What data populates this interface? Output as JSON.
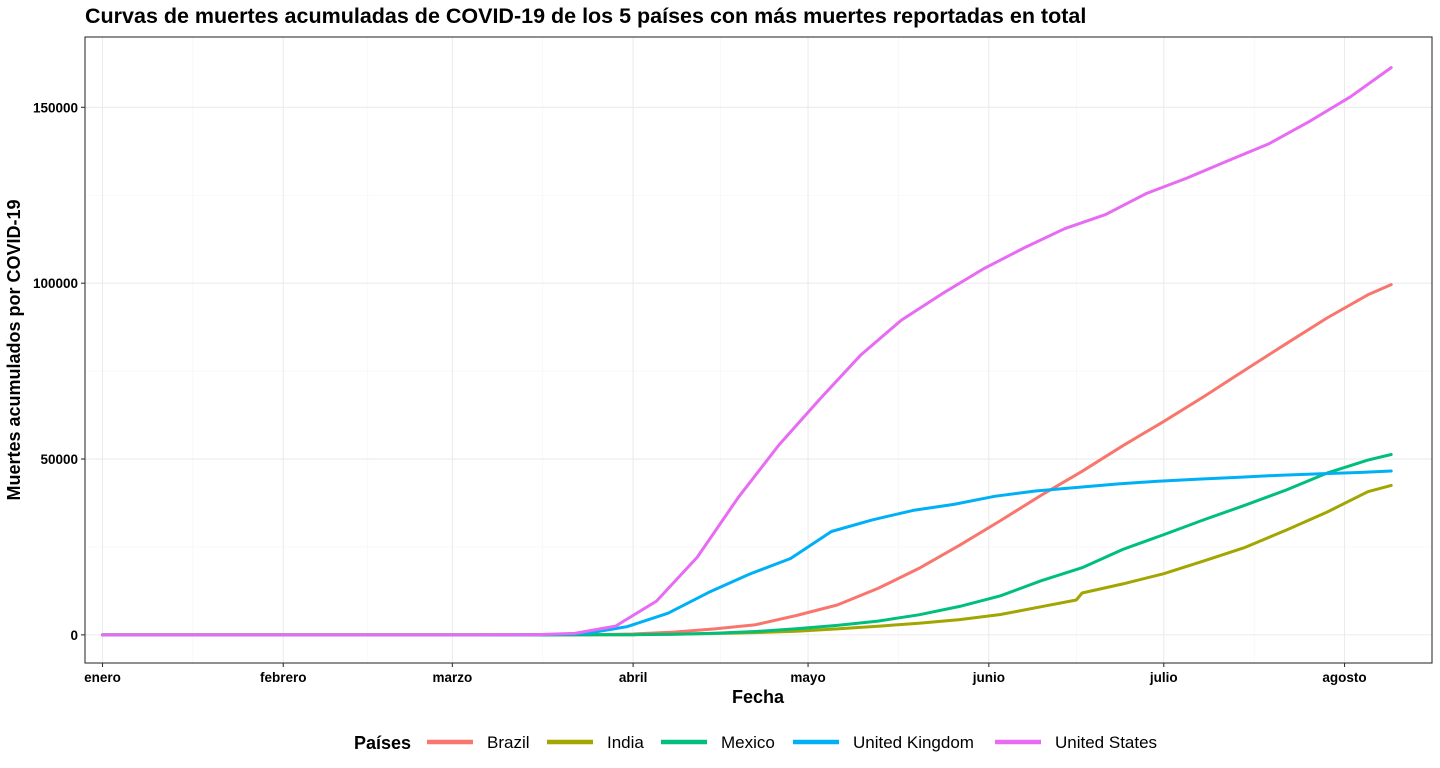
{
  "chart_data": {
    "type": "line",
    "title": "Curvas de muertes acumuladas de COVID-19 de los 5 países con más muertes reportadas en total",
    "xlabel": "Fecha",
    "ylabel": "Muertes acumulados por COVID-19",
    "x_ticks": [
      {
        "label": "enero",
        "date": "2020-01-01"
      },
      {
        "label": "febrero",
        "date": "2020-02-01"
      },
      {
        "label": "marzo",
        "date": "2020-03-01"
      },
      {
        "label": "abril",
        "date": "2020-04-01"
      },
      {
        "label": "mayo",
        "date": "2020-05-01"
      },
      {
        "label": "junio",
        "date": "2020-06-01"
      },
      {
        "label": "julio",
        "date": "2020-07-01"
      },
      {
        "label": "agosto",
        "date": "2020-08-01"
      }
    ],
    "xlim": [
      "2019-12-29",
      "2020-08-16"
    ],
    "y_ticks": [
      {
        "label": "0",
        "value": 0
      },
      {
        "label": "50000",
        "value": 50000
      },
      {
        "label": "100000",
        "value": 100000
      },
      {
        "label": "150000",
        "value": 150000
      }
    ],
    "ylim": [
      -8000,
      170000
    ],
    "grid": true,
    "legend": {
      "title": "Países",
      "position": "bottom"
    },
    "series": [
      {
        "name": "Brazil",
        "color": "#F8766D",
        "points": [
          [
            "2020-01-01",
            0
          ],
          [
            "2020-03-17",
            0
          ],
          [
            "2020-03-25",
            60
          ],
          [
            "2020-04-01",
            240
          ],
          [
            "2020-04-08",
            800
          ],
          [
            "2020-04-15",
            1700
          ],
          [
            "2020-04-22",
            2900
          ],
          [
            "2020-04-29",
            5500
          ],
          [
            "2020-05-06",
            8500
          ],
          [
            "2020-05-13",
            13200
          ],
          [
            "2020-05-20",
            18900
          ],
          [
            "2020-05-27",
            25500
          ],
          [
            "2020-06-03",
            32500
          ],
          [
            "2020-06-10",
            39700
          ],
          [
            "2020-06-17",
            46500
          ],
          [
            "2020-06-24",
            53800
          ],
          [
            "2020-07-01",
            60700
          ],
          [
            "2020-07-08",
            67900
          ],
          [
            "2020-07-15",
            75400
          ],
          [
            "2020-07-22",
            82800
          ],
          [
            "2020-07-29",
            90100
          ],
          [
            "2020-08-05",
            96700
          ],
          [
            "2020-08-09",
            99600
          ]
        ]
      },
      {
        "name": "India",
        "color": "#A3A500",
        "points": [
          [
            "2020-01-01",
            0
          ],
          [
            "2020-03-12",
            0
          ],
          [
            "2020-03-25",
            10
          ],
          [
            "2020-04-01",
            40
          ],
          [
            "2020-04-08",
            170
          ],
          [
            "2020-04-15",
            400
          ],
          [
            "2020-04-22",
            650
          ],
          [
            "2020-04-29",
            1050
          ],
          [
            "2020-05-06",
            1700
          ],
          [
            "2020-05-13",
            2450
          ],
          [
            "2020-05-20",
            3300
          ],
          [
            "2020-05-27",
            4350
          ],
          [
            "2020-06-03",
            5800
          ],
          [
            "2020-06-10",
            8000
          ],
          [
            "2020-06-16",
            9900
          ],
          [
            "2020-06-17",
            11900
          ],
          [
            "2020-06-24",
            14500
          ],
          [
            "2020-07-01",
            17400
          ],
          [
            "2020-07-08",
            21100
          ],
          [
            "2020-07-15",
            24900
          ],
          [
            "2020-07-22",
            29800
          ],
          [
            "2020-07-29",
            34900
          ],
          [
            "2020-08-05",
            40700
          ],
          [
            "2020-08-09",
            42500
          ]
        ]
      },
      {
        "name": "Mexico",
        "color": "#00BF7D",
        "points": [
          [
            "2020-01-01",
            0
          ],
          [
            "2020-03-18",
            0
          ],
          [
            "2020-03-25",
            10
          ],
          [
            "2020-04-01",
            40
          ],
          [
            "2020-04-08",
            150
          ],
          [
            "2020-04-15",
            450
          ],
          [
            "2020-04-22",
            970
          ],
          [
            "2020-04-29",
            1730
          ],
          [
            "2020-05-06",
            2700
          ],
          [
            "2020-05-13",
            3900
          ],
          [
            "2020-05-20",
            5700
          ],
          [
            "2020-05-27",
            8100
          ],
          [
            "2020-06-03",
            11100
          ],
          [
            "2020-06-10",
            15400
          ],
          [
            "2020-06-17",
            19100
          ],
          [
            "2020-06-24",
            24300
          ],
          [
            "2020-07-01",
            28500
          ],
          [
            "2020-07-08",
            32800
          ],
          [
            "2020-07-15",
            36900
          ],
          [
            "2020-07-22",
            41200
          ],
          [
            "2020-07-29",
            46000
          ],
          [
            "2020-08-05",
            49700
          ],
          [
            "2020-08-09",
            51300
          ]
        ]
      },
      {
        "name": "United Kingdom",
        "color": "#00B0F6",
        "points": [
          [
            "2020-01-01",
            0
          ],
          [
            "2020-03-10",
            0
          ],
          [
            "2020-03-17",
            70
          ],
          [
            "2020-03-24",
            420
          ],
          [
            "2020-03-31",
            2350
          ],
          [
            "2020-04-07",
            6160
          ],
          [
            "2020-04-14",
            12100
          ],
          [
            "2020-04-21",
            17300
          ],
          [
            "2020-04-28",
            21700
          ],
          [
            "2020-05-05",
            29400
          ],
          [
            "2020-05-12",
            32700
          ],
          [
            "2020-05-19",
            35400
          ],
          [
            "2020-05-26",
            37100
          ],
          [
            "2020-06-02",
            39400
          ],
          [
            "2020-06-09",
            40900
          ],
          [
            "2020-06-16",
            41900
          ],
          [
            "2020-06-23",
            42900
          ],
          [
            "2020-06-30",
            43700
          ],
          [
            "2020-07-07",
            44300
          ],
          [
            "2020-07-14",
            44800
          ],
          [
            "2020-07-21",
            45400
          ],
          [
            "2020-07-28",
            45800
          ],
          [
            "2020-08-04",
            46200
          ],
          [
            "2020-08-09",
            46600
          ]
        ]
      },
      {
        "name": "United States",
        "color": "#E76BF3",
        "points": [
          [
            "2020-01-01",
            0
          ],
          [
            "2020-03-05",
            0
          ],
          [
            "2020-03-15",
            60
          ],
          [
            "2020-03-22",
            420
          ],
          [
            "2020-03-29",
            2500
          ],
          [
            "2020-04-05",
            9600
          ],
          [
            "2020-04-12",
            22100
          ],
          [
            "2020-04-19",
            39000
          ],
          [
            "2020-04-26",
            54000
          ],
          [
            "2020-05-03",
            67000
          ],
          [
            "2020-05-10",
            79500
          ],
          [
            "2020-05-17",
            89500
          ],
          [
            "2020-05-24",
            97000
          ],
          [
            "2020-05-31",
            104000
          ],
          [
            "2020-06-07",
            110000
          ],
          [
            "2020-06-14",
            115500
          ],
          [
            "2020-06-21",
            119500
          ],
          [
            "2020-06-28",
            125500
          ],
          [
            "2020-07-05",
            129900
          ],
          [
            "2020-07-12",
            134800
          ],
          [
            "2020-07-19",
            139600
          ],
          [
            "2020-07-26",
            146000
          ],
          [
            "2020-08-02",
            153000
          ],
          [
            "2020-08-09",
            161300
          ]
        ]
      }
    ]
  }
}
